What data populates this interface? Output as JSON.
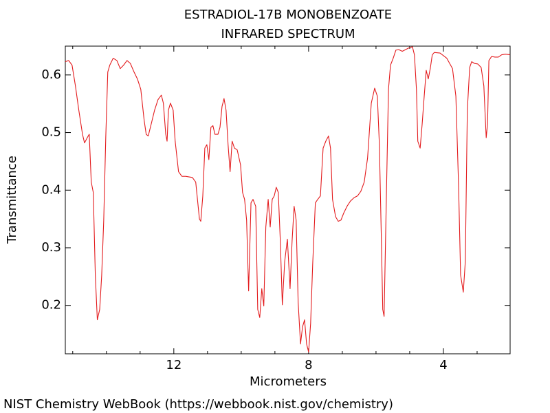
{
  "chart_data": {
    "type": "line",
    "title": "ESTRADIOL-17B MONOBENZOATE",
    "subtitle": "INFRARED SPECTRUM",
    "x_label": "Micrometers",
    "y_label": "Transmittance",
    "source": "NIST Chemistry WebBook (https://webbook.nist.gov/chemistry)",
    "color": "#e31a1c",
    "xlim": [
      15.22,
      2.02
    ],
    "ylim": [
      0.116,
      0.65
    ],
    "xticks": [
      12,
      8,
      4
    ],
    "x_minor_ticks": [
      15,
      14,
      13,
      11,
      10,
      9,
      7,
      6,
      5,
      3
    ],
    "yticks": [
      0.2,
      0.3,
      0.4,
      0.5,
      0.6
    ],
    "x": [
      15.22,
      15.12,
      15.02,
      14.92,
      14.82,
      14.71,
      14.65,
      14.57,
      14.51,
      14.45,
      14.39,
      14.33,
      14.27,
      14.2,
      14.14,
      14.08,
      14.02,
      13.96,
      13.9,
      13.8,
      13.69,
      13.59,
      13.49,
      13.39,
      13.29,
      13.18,
      13.08,
      12.98,
      12.88,
      12.82,
      12.76,
      12.67,
      12.57,
      12.47,
      12.37,
      12.31,
      12.24,
      12.2,
      12.16,
      12.1,
      12.02,
      11.96,
      11.86,
      11.76,
      11.65,
      11.45,
      11.35,
      11.24,
      11.2,
      11.14,
      11.08,
      11.02,
      10.96,
      10.9,
      10.84,
      10.78,
      10.69,
      10.63,
      10.57,
      10.51,
      10.45,
      10.39,
      10.33,
      10.27,
      10.2,
      10.12,
      10.02,
      9.96,
      9.9,
      9.84,
      9.78,
      9.71,
      9.65,
      9.57,
      9.51,
      9.45,
      9.39,
      9.33,
      9.27,
      9.2,
      9.14,
      9.08,
      9.02,
      8.96,
      8.9,
      8.84,
      8.78,
      8.71,
      8.63,
      8.55,
      8.49,
      8.43,
      8.37,
      8.31,
      8.24,
      8.18,
      8.12,
      8.06,
      8.0,
      7.94,
      7.88,
      7.8,
      7.73,
      7.65,
      7.57,
      7.49,
      7.41,
      7.35,
      7.29,
      7.2,
      7.12,
      7.04,
      6.96,
      6.86,
      6.76,
      6.65,
      6.55,
      6.45,
      6.35,
      6.25,
      6.14,
      6.04,
      5.96,
      5.9,
      5.84,
      5.8,
      5.76,
      5.69,
      5.63,
      5.57,
      5.49,
      5.41,
      5.33,
      5.22,
      5.12,
      5.02,
      4.92,
      4.86,
      4.8,
      4.76,
      4.69,
      4.63,
      4.57,
      4.51,
      4.45,
      4.39,
      4.33,
      4.27,
      4.1,
      3.9,
      3.73,
      3.63,
      3.55,
      3.49,
      3.41,
      3.35,
      3.29,
      3.22,
      3.16,
      3.08,
      2.98,
      2.88,
      2.8,
      2.73,
      2.69,
      2.65,
      2.57,
      2.47,
      2.37,
      2.27,
      2.16,
      2.02
    ],
    "values": [
      0.623,
      0.625,
      0.617,
      0.581,
      0.539,
      0.497,
      0.482,
      0.491,
      0.497,
      0.414,
      0.396,
      0.253,
      0.175,
      0.193,
      0.253,
      0.348,
      0.491,
      0.605,
      0.617,
      0.629,
      0.625,
      0.611,
      0.617,
      0.625,
      0.62,
      0.605,
      0.593,
      0.575,
      0.521,
      0.497,
      0.494,
      0.515,
      0.539,
      0.557,
      0.565,
      0.551,
      0.497,
      0.485,
      0.539,
      0.551,
      0.539,
      0.485,
      0.432,
      0.424,
      0.424,
      0.422,
      0.414,
      0.35,
      0.346,
      0.39,
      0.473,
      0.479,
      0.453,
      0.509,
      0.512,
      0.497,
      0.497,
      0.509,
      0.545,
      0.559,
      0.539,
      0.479,
      0.432,
      0.485,
      0.473,
      0.47,
      0.444,
      0.396,
      0.384,
      0.348,
      0.225,
      0.378,
      0.384,
      0.372,
      0.193,
      0.179,
      0.229,
      0.199,
      0.336,
      0.384,
      0.336,
      0.384,
      0.39,
      0.405,
      0.396,
      0.312,
      0.201,
      0.276,
      0.315,
      0.229,
      0.312,
      0.372,
      0.348,
      0.205,
      0.133,
      0.163,
      0.175,
      0.133,
      0.119,
      0.169,
      0.27,
      0.378,
      0.384,
      0.39,
      0.473,
      0.485,
      0.494,
      0.473,
      0.384,
      0.354,
      0.346,
      0.348,
      0.36,
      0.372,
      0.381,
      0.387,
      0.39,
      0.398,
      0.414,
      0.456,
      0.551,
      0.577,
      0.563,
      0.479,
      0.312,
      0.193,
      0.181,
      0.396,
      0.575,
      0.617,
      0.629,
      0.643,
      0.644,
      0.641,
      0.644,
      0.647,
      0.649,
      0.635,
      0.575,
      0.485,
      0.473,
      0.515,
      0.563,
      0.608,
      0.593,
      0.611,
      0.635,
      0.639,
      0.638,
      0.629,
      0.611,
      0.563,
      0.408,
      0.253,
      0.223,
      0.276,
      0.539,
      0.613,
      0.623,
      0.62,
      0.619,
      0.613,
      0.581,
      0.491,
      0.515,
      0.625,
      0.632,
      0.631,
      0.631,
      0.635,
      0.636,
      0.635
    ]
  }
}
